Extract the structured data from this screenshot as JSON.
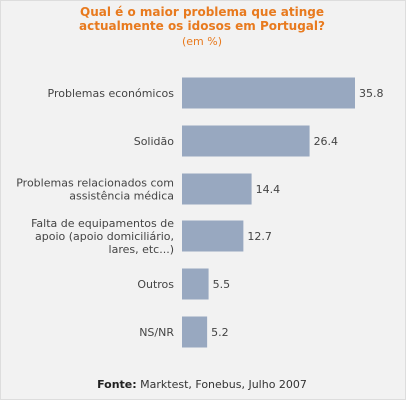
{
  "chart_data": {
    "type": "bar",
    "orientation": "horizontal",
    "title": "Qual é o maior problema que atinge\nactualmente os idosos em Portugal?",
    "subtitle": "(em %)",
    "categories": [
      "Problemas económicos",
      "Solidão",
      "Problemas relacionados com\nassistência médica",
      "Falta de equipamentos de\napoio (apoio domiciliário,\nlares, etc...)",
      "Outros",
      "NS/NR"
    ],
    "values": [
      35.8,
      26.4,
      14.4,
      12.7,
      5.5,
      5.2
    ],
    "value_labels": [
      "35.8",
      "26.4",
      "14.4",
      "12.7",
      "5.5",
      "5.2"
    ],
    "xlim": [
      0,
      35.8
    ],
    "bar_color": "#98a8c0",
    "title_color": "#e87a1e",
    "grid": false
  },
  "source": {
    "label": "Fonte:",
    "text": "Marktest, Fonebus, Julho 2007"
  }
}
